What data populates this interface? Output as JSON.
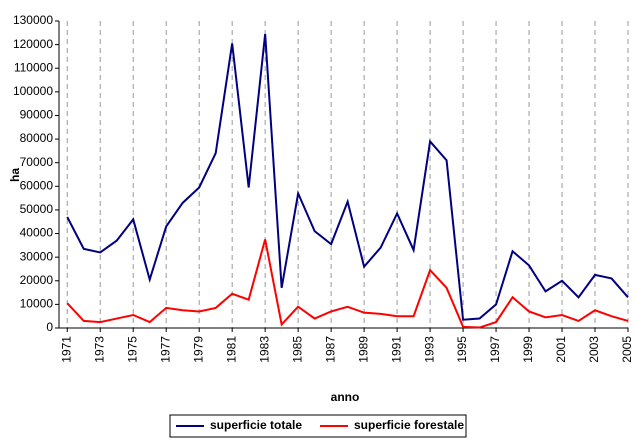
{
  "chart_data": {
    "type": "line",
    "x_label": "anno",
    "y_label": "ha",
    "x": [
      1971,
      1972,
      1973,
      1974,
      1975,
      1976,
      1977,
      1978,
      1979,
      1980,
      1981,
      1982,
      1983,
      1984,
      1985,
      1986,
      1987,
      1988,
      1989,
      1990,
      1991,
      1992,
      1993,
      1994,
      1995,
      1996,
      1997,
      1998,
      1999,
      2000,
      2001,
      2002,
      2003,
      2004,
      2005
    ],
    "series": [
      {
        "name": "superficie totale",
        "color": "#000080",
        "values": [
          47000,
          33500,
          32000,
          37000,
          46000,
          20500,
          43000,
          53000,
          59500,
          74000,
          120500,
          59500,
          124500,
          17000,
          57000,
          41000,
          35500,
          53500,
          26000,
          34000,
          48500,
          33000,
          79000,
          71000,
          3500,
          4000,
          10000,
          32500,
          26500,
          15500,
          20000,
          13000,
          22500,
          21000,
          13000
        ]
      },
      {
        "name": "superficie forestale",
        "color": "#ff0000",
        "values": [
          10500,
          3000,
          2500,
          4000,
          5500,
          2500,
          8500,
          7500,
          7000,
          8500,
          14500,
          12000,
          37500,
          1500,
          9000,
          4000,
          7000,
          9000,
          6500,
          6000,
          5000,
          5000,
          24500,
          17000,
          500,
          200,
          2500,
          13000,
          7000,
          4500,
          5500,
          3000,
          7500,
          5000,
          3000
        ]
      }
    ],
    "xlim": [
      1970.5,
      2005
    ],
    "xticks": [
      1971,
      1973,
      1975,
      1977,
      1979,
      1981,
      1983,
      1985,
      1987,
      1989,
      1991,
      1993,
      1995,
      1997,
      1999,
      2001,
      2003,
      2005
    ],
    "ylim": [
      0,
      130000
    ],
    "yticks": [
      0,
      10000,
      20000,
      30000,
      40000,
      50000,
      60000,
      70000,
      80000,
      90000,
      100000,
      110000,
      120000,
      130000
    ],
    "grid": true,
    "legend": "bottom"
  }
}
